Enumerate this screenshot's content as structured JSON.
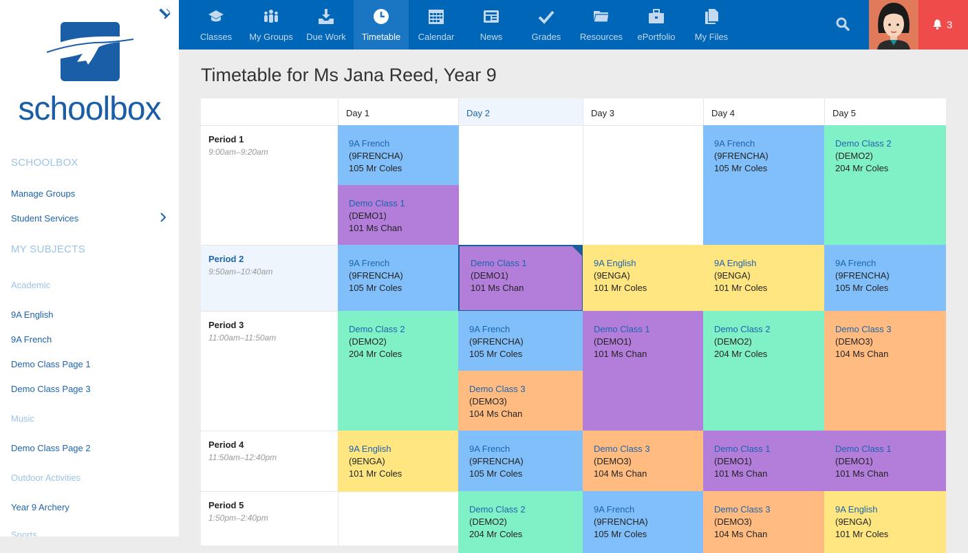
{
  "sidebar": {
    "brand": "schoolbox",
    "sections": [
      {
        "label": "SCHOOLBOX"
      },
      {
        "label": "MY SUBJECTS"
      }
    ],
    "links": [
      {
        "label": "Manage Groups"
      },
      {
        "label": "Student Services"
      }
    ],
    "subjects": [
      {
        "label": "Academic"
      },
      {
        "label": "9A English"
      },
      {
        "label": "9A French"
      },
      {
        "label": "Demo Class Page 1"
      },
      {
        "label": "Demo Class Page 3"
      },
      {
        "label": "Music"
      },
      {
        "label": "Demo Class Page 2"
      },
      {
        "label": "Outdoor Activities"
      },
      {
        "label": "Year 9 Archery"
      },
      {
        "label": "Sports"
      }
    ]
  },
  "nav": {
    "items": [
      {
        "label": "Classes",
        "icon": "graduation-cap-icon"
      },
      {
        "label": "My Groups",
        "icon": "group-icon"
      },
      {
        "label": "Due Work",
        "icon": "download-tray-icon"
      },
      {
        "label": "Timetable",
        "icon": "clock-icon"
      },
      {
        "label": "Calendar",
        "icon": "calendar-icon"
      },
      {
        "label": "News",
        "icon": "newspaper-icon"
      },
      {
        "label": "Grades",
        "icon": "check-icon"
      },
      {
        "label": "Resources",
        "icon": "folder-icon"
      },
      {
        "label": "ePortfolio",
        "icon": "briefcase-icon"
      },
      {
        "label": "My Files",
        "icon": "files-icon"
      }
    ],
    "active": "Timetable",
    "notification_count": "3"
  },
  "page": {
    "title": "Timetable for Ms Jana Reed, Year 9"
  },
  "timetable": {
    "current_day": "Day 2",
    "current_period": "Period 2",
    "days": [
      "Day 1",
      "Day 2",
      "Day 3",
      "Day 4",
      "Day 5"
    ],
    "periods": [
      {
        "name": "Period 1",
        "time": "9:00am–9:20am"
      },
      {
        "name": "Period 2",
        "time": "9:50am–10:40am"
      },
      {
        "name": "Period 3",
        "time": "11:00am–11:50am"
      },
      {
        "name": "Period 4",
        "time": "11:50am–12:40pm"
      },
      {
        "name": "Period 5",
        "time": "1:50pm–2:40pm"
      }
    ],
    "entries": [
      {
        "name": "9A French",
        "code": "(9FRENCHA)",
        "room": "105 Mr Coles",
        "color": "#80bff9"
      },
      {
        "name": "Demo Class 1",
        "code": "(DEMO1)",
        "room": "101 Ms Chan",
        "color": "#b37dda"
      },
      {
        "name": "9A French",
        "code": "(9FRENCHA)",
        "room": "105 Mr Coles",
        "color": "#80bff9"
      },
      {
        "name": "Demo Class 2",
        "code": "(DEMO2)",
        "room": "204 Mr Coles",
        "color": "#80f0c6"
      },
      {
        "name": "9A French",
        "code": "(9FRENCHA)",
        "room": "105 Mr Coles",
        "color": "#80bff9"
      },
      {
        "name": "Demo Class 1",
        "code": "(DEMO1)",
        "room": "101 Ms Chan",
        "color": "#b37dda"
      },
      {
        "name": "9A English",
        "code": "(9ENGA)",
        "room": "101 Mr Coles",
        "color": "#ffe680"
      },
      {
        "name": "9A English",
        "code": "(9ENGA)",
        "room": "101 Mr Coles",
        "color": "#ffe680"
      },
      {
        "name": "9A French",
        "code": "(9FRENCHA)",
        "room": "105 Mr Coles",
        "color": "#80bff9"
      },
      {
        "name": "Demo Class 2",
        "code": "(DEMO2)",
        "room": "204 Mr Coles",
        "color": "#80f0c6"
      },
      {
        "name": "9A French",
        "code": "(9FRENCHA)",
        "room": "105 Mr Coles",
        "color": "#80bff9"
      },
      {
        "name": "Demo Class 3",
        "code": "(DEMO3)",
        "room": "104 Ms Chan",
        "color": "#ffbb80"
      },
      {
        "name": "Demo Class 1",
        "code": "(DEMO1)",
        "room": "101 Ms Chan",
        "color": "#b37dda"
      },
      {
        "name": "Demo Class 2",
        "code": "(DEMO2)",
        "room": "204 Mr Coles",
        "color": "#80f0c6"
      },
      {
        "name": "Demo Class 3",
        "code": "(DEMO3)",
        "room": "104 Ms Chan",
        "color": "#ffbb80"
      },
      {
        "name": "9A English",
        "code": "(9ENGA)",
        "room": "101 Mr Coles",
        "color": "#ffe680"
      },
      {
        "name": "9A French",
        "code": "(9FRENCHA)",
        "room": "105 Mr Coles",
        "color": "#80bff9"
      },
      {
        "name": "Demo Class 3",
        "code": "(DEMO3)",
        "room": "104 Ms Chan",
        "color": "#ffbb80"
      },
      {
        "name": "Demo Class 1",
        "code": "(DEMO1)",
        "room": "101 Ms Chan",
        "color": "#b37dda"
      },
      {
        "name": "Demo Class 1",
        "code": "(DEMO1)",
        "room": "101 Ms Chan",
        "color": "#b37dda"
      },
      {
        "name": "Demo Class 2",
        "code": "(DEMO2)",
        "room": "204 Mr Coles",
        "color": "#80f0c6"
      },
      {
        "name": "9A French",
        "code": "(9FRENCHA)",
        "room": "105 Mr Coles",
        "color": "#80bff9"
      },
      {
        "name": "Demo Class 3",
        "code": "(DEMO3)",
        "room": "104 Ms Chan",
        "color": "#ffbb80"
      },
      {
        "name": "9A English",
        "code": "(9ENGA)",
        "room": "101 Mr Coles",
        "color": "#ffe680"
      }
    ]
  },
  "colors": {
    "nav": "#0066b8",
    "accent": "#1d63ad",
    "notify": "#ef4b4b",
    "avatar_bg": "#e07a5a"
  }
}
